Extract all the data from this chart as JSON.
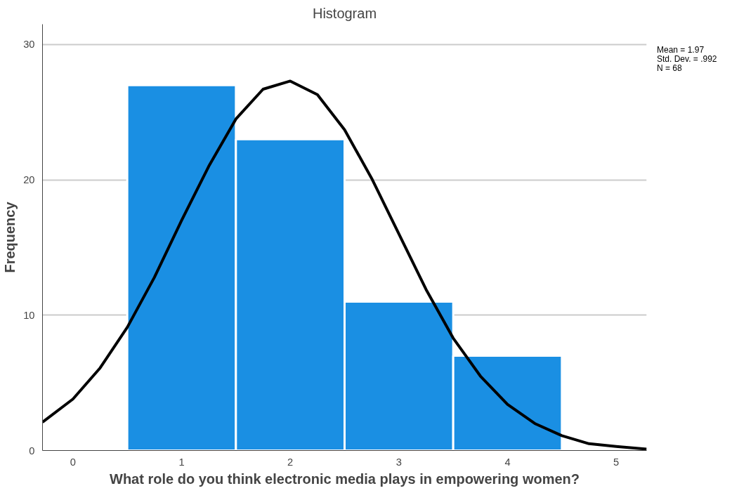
{
  "chart_data": {
    "type": "histogram",
    "title": "Histogram",
    "xlabel": "What role do you think electronic media plays in empowering women?",
    "ylabel": "Frequency",
    "bins": [
      0.5,
      1.5,
      2.5,
      3.5,
      4.5
    ],
    "values": [
      27,
      23,
      11,
      7
    ],
    "color": "#1a8fe3",
    "series": [
      {
        "type": "line",
        "color": "#000000",
        "x": [
          -0.28,
          0,
          0.25,
          0.5,
          0.75,
          1,
          1.25,
          1.5,
          1.75,
          2,
          2.25,
          2.5,
          2.75,
          3,
          3.25,
          3.5,
          3.75,
          4,
          4.25,
          4.5,
          4.75,
          5,
          5.28
        ],
        "values": [
          2.1,
          3.8,
          6.1,
          9.1,
          12.8,
          17.0,
          21.0,
          24.5,
          26.7,
          27.3,
          26.3,
          23.7,
          20.1,
          16.0,
          11.9,
          8.3,
          5.5,
          3.4,
          2.0,
          1.1,
          0.5,
          0.3,
          0.1
        ]
      }
    ],
    "xlim": [
      -0.28,
      5.28
    ],
    "ylim": [
      0,
      31.5
    ],
    "xticks": [
      0,
      1,
      2,
      3,
      4,
      5
    ],
    "yticks": [
      0,
      10,
      20,
      30
    ],
    "grid": "y",
    "annotations": [
      "Mean = 1.97",
      "Std. Dev. = .992",
      "N = 68"
    ]
  }
}
